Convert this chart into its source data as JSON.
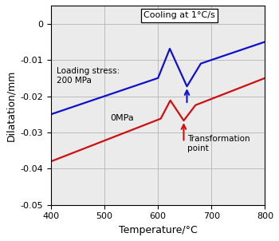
{
  "title": "Cooling at 1°C/s",
  "xlabel": "Temperature/°C",
  "ylabel": "Dilatation/mm",
  "xlim": [
    400,
    800
  ],
  "ylim": [
    -0.05,
    0.005
  ],
  "yticks": [
    0,
    -0.01,
    -0.02,
    -0.03,
    -0.04,
    -0.05
  ],
  "xticks": [
    400,
    500,
    600,
    700,
    800
  ],
  "label_0MPa": "0MPa",
  "label_200MPa": "Loading stress:\n200 MPa",
  "annotation": "Transformation\npoint",
  "background_color": "#ebebeb",
  "grid_color": "#bbbbbb",
  "blue_color": "#1010cc",
  "red_color": "#cc1010"
}
